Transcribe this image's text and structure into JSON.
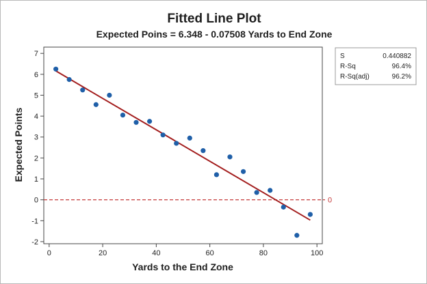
{
  "colors": {
    "points": "#1f5fa8",
    "fit_line": "#a31d1d",
    "reference_line": "#c43a3a",
    "axis": "#444444"
  },
  "chart_data": {
    "type": "scatter",
    "title": "Fitted Line Plot",
    "subtitle": "Expected Poins = 6.348 - 0.07508 Yards to End Zone",
    "xlabel": "Yards to the End Zone",
    "ylabel": "Expected Points",
    "xlim": [
      -2,
      102
    ],
    "ylim": [
      -2.1,
      7.3
    ],
    "x_ticks": [
      0,
      20,
      40,
      60,
      80,
      100
    ],
    "y_ticks": [
      -2,
      -1,
      0,
      1,
      2,
      3,
      4,
      5,
      6,
      7
    ],
    "grid": false,
    "legend": "none",
    "points": [
      {
        "x": 2.5,
        "y": 6.25
      },
      {
        "x": 7.5,
        "y": 5.75
      },
      {
        "x": 12.5,
        "y": 5.25
      },
      {
        "x": 17.5,
        "y": 4.55
      },
      {
        "x": 22.5,
        "y": 5.0
      },
      {
        "x": 27.5,
        "y": 4.05
      },
      {
        "x": 32.5,
        "y": 3.7
      },
      {
        "x": 37.5,
        "y": 3.75
      },
      {
        "x": 42.5,
        "y": 3.1
      },
      {
        "x": 47.5,
        "y": 2.7
      },
      {
        "x": 52.5,
        "y": 2.95
      },
      {
        "x": 57.5,
        "y": 2.35
      },
      {
        "x": 62.5,
        "y": 1.2
      },
      {
        "x": 67.5,
        "y": 2.05
      },
      {
        "x": 72.5,
        "y": 1.35
      },
      {
        "x": 77.5,
        "y": 0.35
      },
      {
        "x": 82.5,
        "y": 0.45
      },
      {
        "x": 87.5,
        "y": -0.35
      },
      {
        "x": 92.5,
        "y": -1.7
      },
      {
        "x": 97.5,
        "y": -0.7
      }
    ],
    "fit_line": {
      "intercept": 6.348,
      "slope": -0.07508,
      "x_range": [
        2.5,
        97.5
      ]
    },
    "reference_line": {
      "y": 0,
      "label": "0"
    },
    "stats": [
      {
        "name": "S",
        "value": "0.440882"
      },
      {
        "name": "R-Sq",
        "value": "96.4%"
      },
      {
        "name": "R-Sq(adj)",
        "value": "96.2%"
      }
    ]
  }
}
